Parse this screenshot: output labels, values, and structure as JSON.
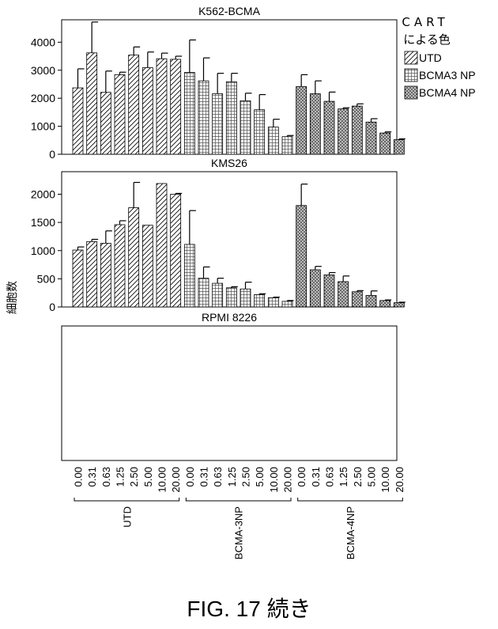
{
  "figure_caption": "FIG. 17 続き",
  "y_axis_label": "細胞数",
  "legend": {
    "title_line1": "CART",
    "title_line2": "による色",
    "items": [
      {
        "label": "UTD",
        "pattern": "hatch"
      },
      {
        "label": "BCMA3 NP",
        "pattern": "grid"
      },
      {
        "label": "BCMA4 NP",
        "pattern": "dots"
      }
    ]
  },
  "x_tick_labels": [
    "0.00",
    "0.31",
    "0.63",
    "1.25",
    "2.50",
    "5.00",
    "10.00",
    "20.00"
  ],
  "group_labels": [
    "UTD",
    "BCMA-3NP",
    "BCMA-4NP"
  ],
  "chart_data": [
    {
      "type": "bar",
      "title": "K562-BCMA",
      "ylim": [
        0,
        4800
      ],
      "yticks": [
        0,
        1000,
        2000,
        3000,
        4000
      ],
      "categories": [
        "0.00",
        "0.31",
        "0.63",
        "1.25",
        "2.50",
        "5.00",
        "10.00",
        "20.00"
      ],
      "series": [
        {
          "name": "UTD",
          "values": [
            2370,
            3620,
            2210,
            2840,
            3540,
            3090,
            3410,
            3390
          ],
          "errors": [
            680,
            1100,
            760,
            90,
            290,
            560,
            200,
            110
          ]
        },
        {
          "name": "BCMA3 NP",
          "values": [
            2920,
            2620,
            2160,
            2590,
            1910,
            1590,
            970,
            630
          ],
          "errors": [
            1160,
            820,
            730,
            300,
            270,
            540,
            280,
            40
          ]
        },
        {
          "name": "BCMA4 NP",
          "values": [
            2420,
            2160,
            1890,
            1620,
            1720,
            1150,
            760,
            520
          ],
          "errors": [
            420,
            460,
            330,
            40,
            80,
            120,
            40,
            30
          ]
        }
      ]
    },
    {
      "type": "bar",
      "title": "KMS26",
      "ylim": [
        0,
        2400
      ],
      "yticks": [
        0,
        500,
        1000,
        1500,
        2000
      ],
      "categories": [
        "0.00",
        "0.31",
        "0.63",
        "1.25",
        "2.50",
        "5.00",
        "10.00",
        "20.00"
      ],
      "series": [
        {
          "name": "UTD",
          "values": [
            1010,
            1160,
            1130,
            1460,
            1760,
            1450,
            2190,
            2000
          ],
          "errors": [
            55,
            40,
            220,
            70,
            450,
            0,
            0,
            15
          ]
        },
        {
          "name": "BCMA3 NP",
          "values": [
            1110,
            510,
            420,
            340,
            320,
            220,
            165,
            100
          ],
          "errors": [
            600,
            200,
            90,
            20,
            120,
            15,
            10,
            15
          ]
        },
        {
          "name": "BCMA4 NP",
          "values": [
            1800,
            660,
            570,
            450,
            270,
            205,
            115,
            75
          ],
          "errors": [
            380,
            60,
            40,
            100,
            20,
            80,
            10,
            10
          ]
        }
      ]
    },
    {
      "type": "bar",
      "title": "RPMI 8226",
      "categories": [
        "0.00",
        "0.31",
        "0.63",
        "1.25",
        "2.50",
        "5.00",
        "10.00",
        "20.00"
      ],
      "series": []
    }
  ]
}
